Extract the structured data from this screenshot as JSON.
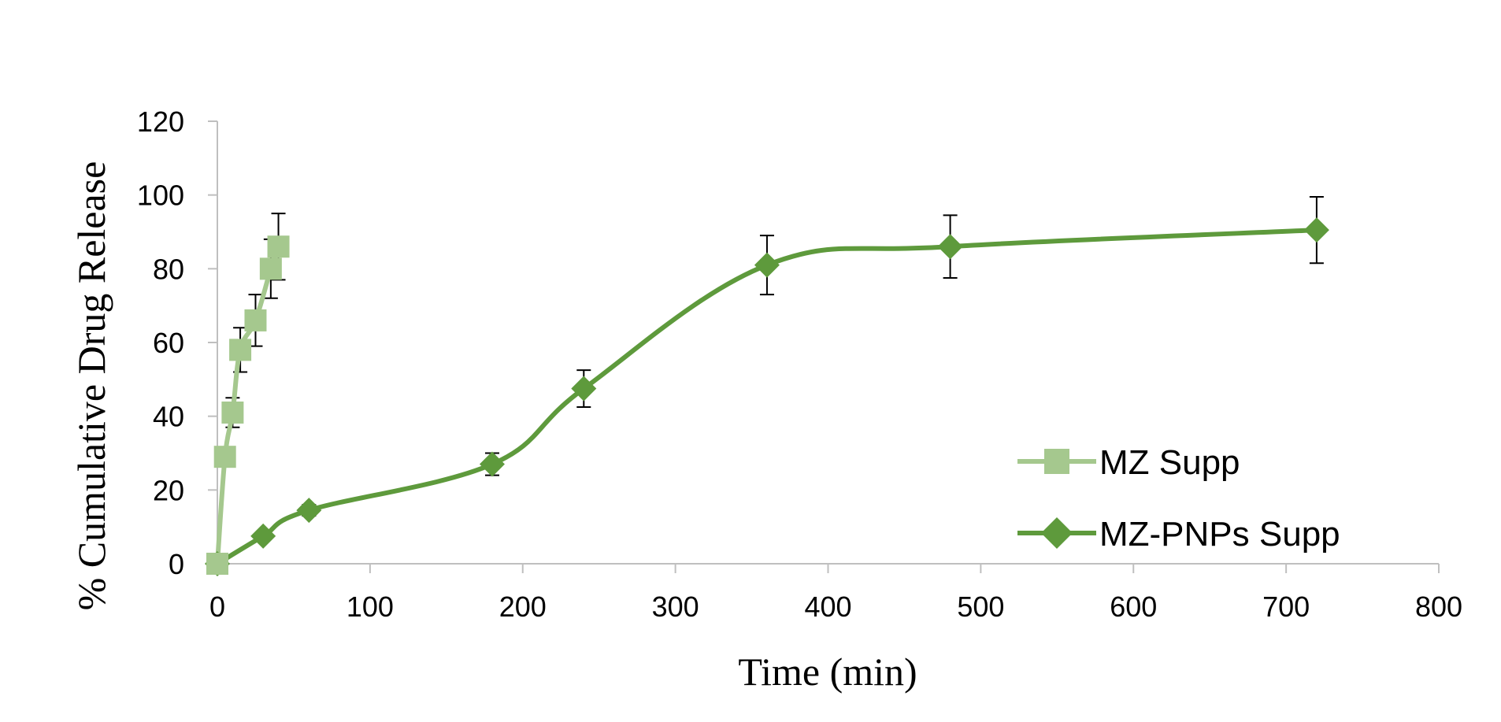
{
  "chart_data": {
    "type": "line",
    "title": "",
    "xlabel": "Time (min)",
    "ylabel": "% Cumulative Drug Release",
    "xlim": [
      0,
      800
    ],
    "ylim": [
      0,
      120
    ],
    "xticks": [
      "0",
      "100",
      "200",
      "300",
      "400",
      "500",
      "600",
      "700",
      "800"
    ],
    "yticks": [
      "0",
      "20",
      "40",
      "60",
      "80",
      "100",
      "120"
    ],
    "grid": false,
    "legend_position": "bottom-right",
    "series": [
      {
        "name": "MZ Supp",
        "marker": "square",
        "color": "#a5c88e",
        "x": [
          0,
          5,
          10,
          15,
          25,
          35,
          40
        ],
        "y": [
          0,
          29,
          41,
          58,
          66,
          80,
          86
        ],
        "error": [
          0,
          0,
          4,
          6,
          7,
          8,
          9
        ]
      },
      {
        "name": "MZ-PNPs Supp",
        "marker": "diamond",
        "color": "#5e9a3c",
        "x": [
          0,
          30,
          60,
          180,
          240,
          360,
          480,
          720
        ],
        "y": [
          0,
          7.5,
          14.5,
          27,
          47.5,
          81,
          86,
          90.5
        ],
        "error": [
          0,
          0,
          1.5,
          3,
          5,
          8,
          8.5,
          9
        ]
      }
    ]
  }
}
